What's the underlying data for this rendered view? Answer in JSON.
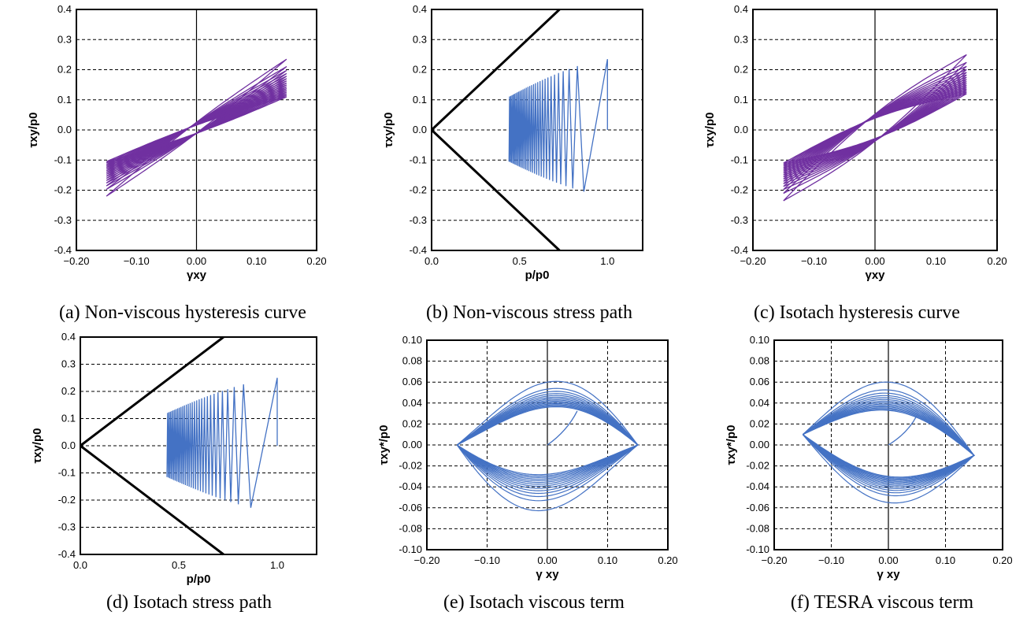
{
  "chart_data": [
    {
      "id": "a",
      "type": "line",
      "caption": "(a) Non-viscous hysteresis curve",
      "xlabel": "γxy",
      "ylabel": "τxy/p0",
      "xlim": [
        -0.2,
        0.2
      ],
      "ylim": [
        -0.4,
        0.4
      ],
      "xticks": [
        "−0.20",
        "−0.10",
        "0.00",
        "0.10",
        "0.20"
      ],
      "yticks": [
        "0.4",
        "0.3",
        "0.2",
        "0.1",
        "0.0",
        "-0.1",
        "-0.2",
        "-0.3",
        "-0.4"
      ],
      "grid": "horizontal-dashed",
      "zero_line": "vertical",
      "series": [
        {
          "kind": "hysteresis",
          "color": "#7030A0",
          "loops": 16,
          "first_peak": 0.235,
          "first_trough": -0.22,
          "last_peak": 0.11,
          "last_trough": -0.105,
          "gamma_amp": 0.15,
          "half_width": 0.018
        }
      ]
    },
    {
      "id": "b",
      "type": "line",
      "caption": "(b) Non-viscous stress path",
      "xlabel": "p/p0",
      "ylabel": "τxy/p0",
      "xlim": [
        0,
        1.2
      ],
      "ylim": [
        -0.4,
        0.4
      ],
      "xticks": [
        "0.0",
        "0.5",
        "1.0"
      ],
      "yticks": [
        "0.4",
        "0.3",
        "0.2",
        "0.1",
        "0.0",
        "-0.1",
        "-0.2",
        "-0.3",
        "-0.4"
      ],
      "grid": "horizontal-dashed",
      "failure_line_slope": 0.55,
      "series": [
        {
          "kind": "stress_path",
          "color": "#4472C4",
          "p_start": 1.0,
          "p_end": 0.44,
          "first_peak": 0.235,
          "first_trough": -0.22,
          "last_peak": 0.11,
          "last_trough": -0.105,
          "cycles": 30
        }
      ]
    },
    {
      "id": "c",
      "type": "line",
      "caption": "(c) Isotach hysteresis curve",
      "xlabel": "γxy",
      "ylabel": "τxy/p0",
      "xlim": [
        -0.2,
        0.2
      ],
      "ylim": [
        -0.4,
        0.4
      ],
      "xticks": [
        "−0.20",
        "−0.10",
        "0.00",
        "0.10",
        "0.20"
      ],
      "yticks": [
        "0.4",
        "0.3",
        "0.2",
        "0.1",
        "0.0",
        "-0.1",
        "-0.2",
        "-0.3",
        "-0.4"
      ],
      "grid": "horizontal-dashed",
      "zero_line": "vertical",
      "series": [
        {
          "kind": "hysteresis",
          "color": "#7030A0",
          "loops": 16,
          "first_peak": 0.25,
          "first_trough": -0.235,
          "last_peak": 0.12,
          "last_trough": -0.11,
          "gamma_amp": 0.15,
          "half_width": 0.045
        }
      ]
    },
    {
      "id": "d",
      "type": "line",
      "caption": "(d) Isotach stress path",
      "xlabel": "p/p0",
      "ylabel": "τxy/p0",
      "xlim": [
        0,
        1.2
      ],
      "ylim": [
        -0.4,
        0.4
      ],
      "xticks": [
        "0.0",
        "0.5",
        "1.0"
      ],
      "yticks": [
        "0.4",
        "0.3",
        "0.2",
        "0.1",
        "0.0",
        "-0.1",
        "-0.2",
        "-0.3",
        "-0.4"
      ],
      "grid": "horizontal-dashed",
      "failure_line_slope": 0.55,
      "series": [
        {
          "kind": "stress_path",
          "color": "#4472C4",
          "p_start": 1.0,
          "p_end": 0.44,
          "first_peak": 0.25,
          "first_trough": -0.245,
          "last_peak": 0.12,
          "last_trough": -0.115,
          "cycles": 30
        }
      ]
    },
    {
      "id": "e",
      "type": "line",
      "caption": "(e) Isotach viscous term",
      "xlabel": "γ xy",
      "ylabel": "τxy*/p0",
      "xlim": [
        -0.2,
        0.2
      ],
      "ylim": [
        -0.1,
        0.1
      ],
      "xticks": [
        "−0.20",
        "−0.10",
        "0.00",
        "0.10",
        "0.20"
      ],
      "yticks": [
        "0.10",
        "0.08",
        "0.06",
        "0.04",
        "0.02",
        "0.00",
        "-0.02",
        "-0.04",
        "-0.06",
        "-0.08",
        "-0.10"
      ],
      "grid": "both-dashed",
      "zero_line": "vertical",
      "series": [
        {
          "kind": "viscous",
          "color": "#4472C4",
          "loops": 14,
          "upper_first": 0.06,
          "upper_last": 0.036,
          "lower_first": -0.062,
          "lower_last": -0.028,
          "gamma_amp": 0.15,
          "upper_skew": 0.05,
          "lower_skew": -0.05,
          "left_end": 0.0,
          "right_end": 0.0
        }
      ]
    },
    {
      "id": "f",
      "type": "line",
      "caption": "(f) TESRA viscous term",
      "xlabel": "γ xy",
      "ylabel": "τxy*/p0",
      "xlim": [
        -0.2,
        0.2
      ],
      "ylim": [
        -0.1,
        0.1
      ],
      "xticks": [
        "−0.20",
        "−0.10",
        "0.00",
        "0.10",
        "0.20"
      ],
      "yticks": [
        "0.10",
        "0.08",
        "0.06",
        "0.04",
        "0.02",
        "0.00",
        "-0.02",
        "-0.04",
        "-0.06",
        "-0.08",
        "-0.10"
      ],
      "grid": "both-dashed",
      "zero_line": "vertical",
      "series": [
        {
          "kind": "viscous",
          "color": "#4472C4",
          "loops": 14,
          "upper_first": 0.06,
          "upper_last": 0.033,
          "lower_first": -0.055,
          "lower_last": -0.03,
          "gamma_amp": 0.15,
          "upper_skew": 0.02,
          "lower_skew": 0.0,
          "left_end": 0.01,
          "right_end": -0.01
        }
      ]
    }
  ]
}
